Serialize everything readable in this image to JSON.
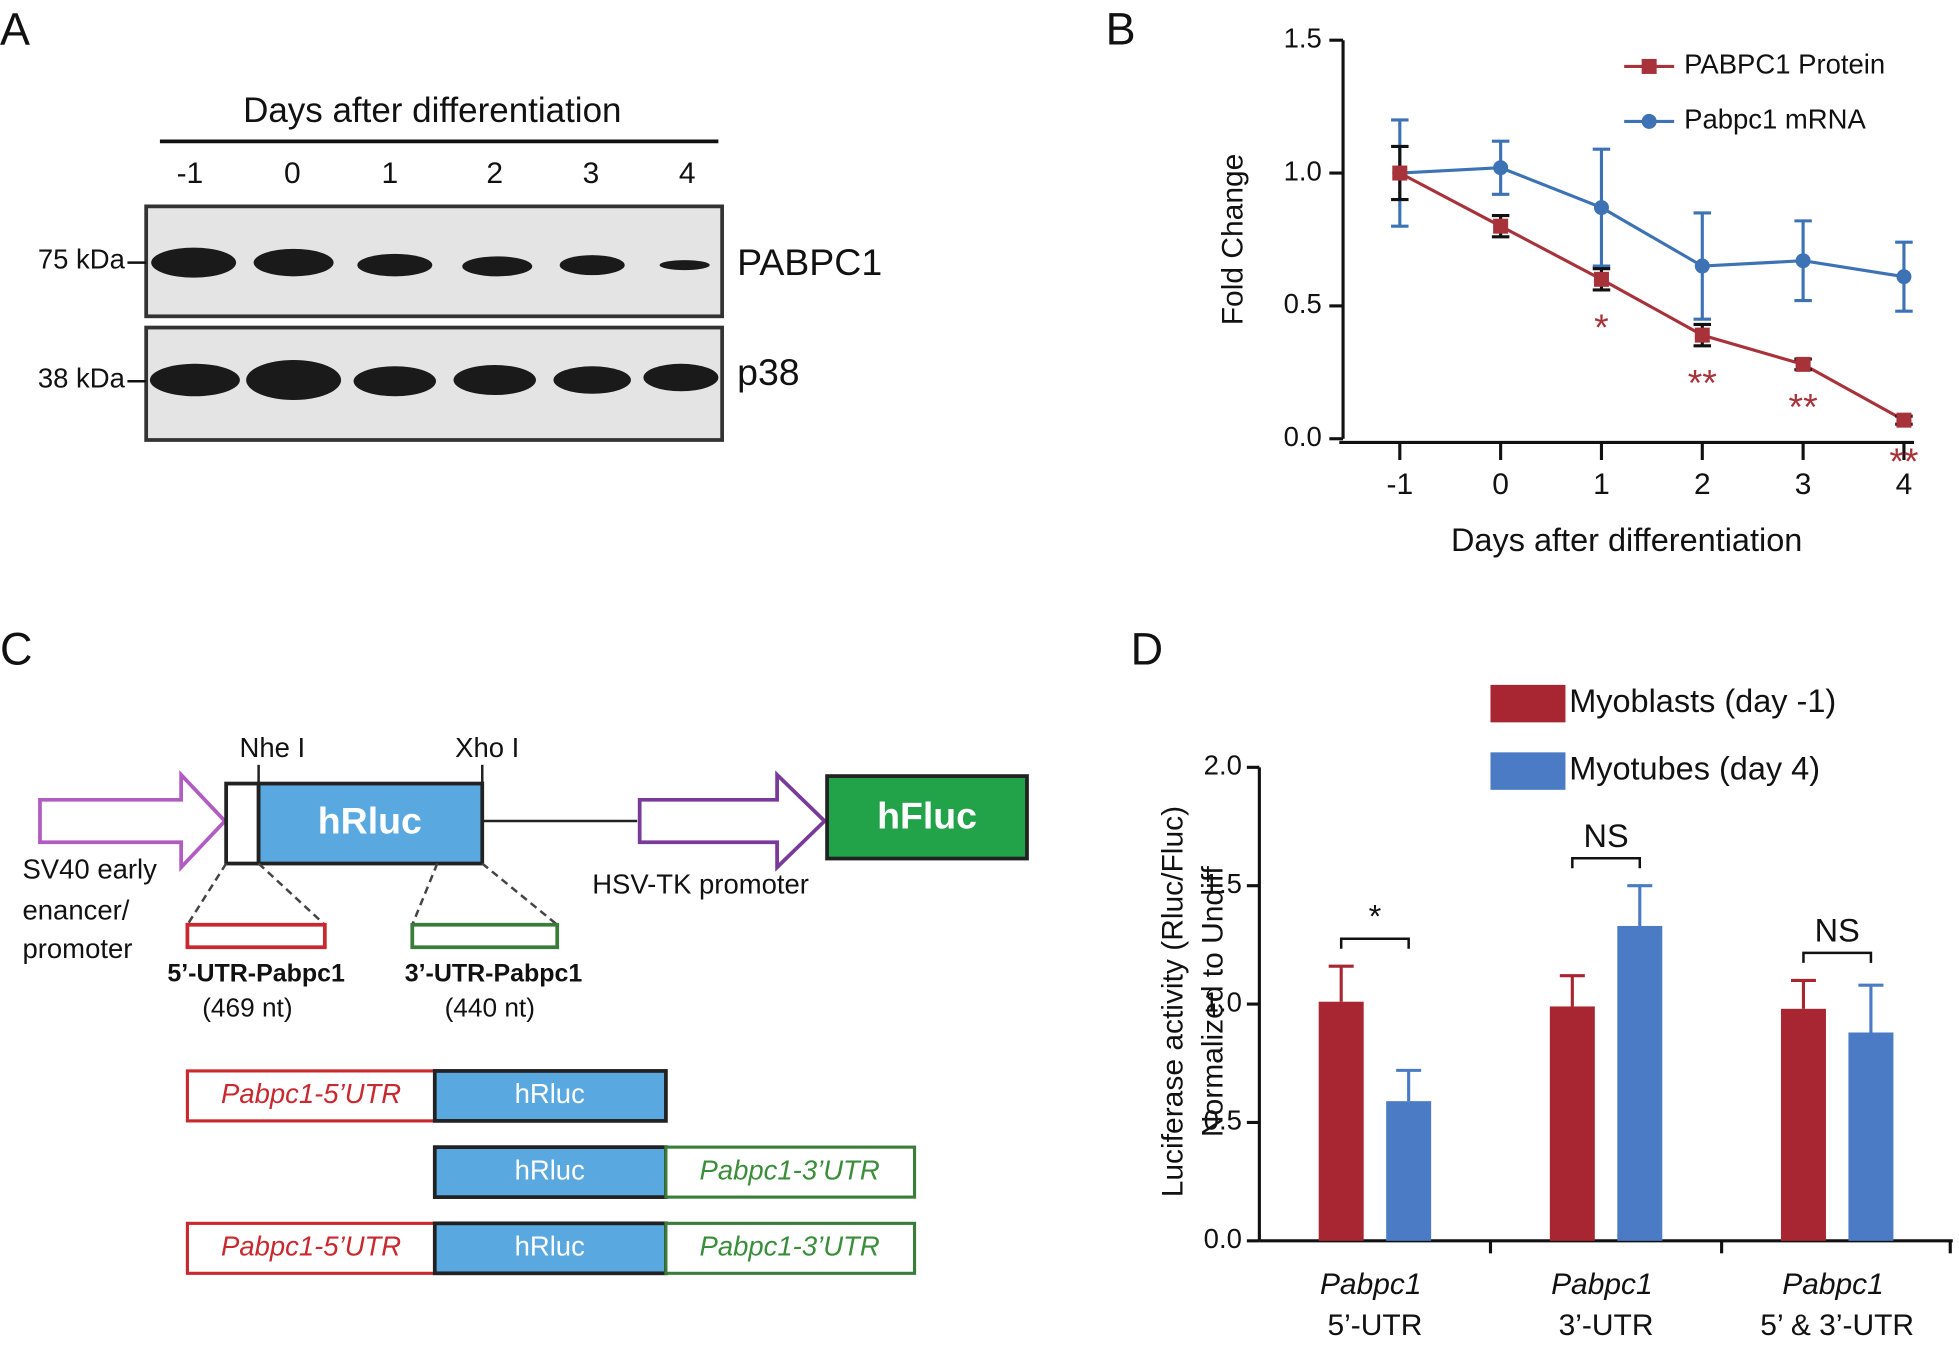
{
  "panel_labels": [
    "A",
    "B",
    "C",
    "D"
  ],
  "western_blot": {
    "title": "Days after differentiation",
    "lanes": [
      "-1",
      "0",
      "1",
      "2",
      "3",
      "4"
    ],
    "blots": [
      {
        "marker": "75 kDa",
        "protein": "PABPC1"
      },
      {
        "marker": "38 kDa",
        "protein": "p38"
      }
    ]
  },
  "construct_diagram": {
    "sites": [
      "Nhe I",
      "Xho I"
    ],
    "genes": [
      "hRluc",
      "hFluc"
    ],
    "promoter_1": [
      "SV40 early",
      "enancer/",
      "promoter"
    ],
    "promoter_2": "HSV-TK promoter",
    "utr_5": {
      "name": "5’-UTR-Pabpc1",
      "length": "(469 nt)"
    },
    "utr_3": {
      "name": "3’-UTR-Pabpc1",
      "length": "(440 nt)"
    },
    "constructs": [
      [
        "Pabpc1-5’UTR",
        "hRluc"
      ],
      [
        "hRluc",
        "Pabpc1-3’UTR"
      ],
      [
        "Pabpc1-5’UTR",
        "hRluc",
        "Pabpc1-3’UTR"
      ]
    ]
  },
  "chart_data": [
    {
      "type": "line",
      "x_label": "Days after differentiation",
      "y_label": "Fold Change",
      "x": [
        -1,
        0,
        1,
        2,
        3,
        4
      ],
      "xlim": [
        -1.6,
        4.1
      ],
      "xticks": [
        -1,
        0,
        1,
        2,
        3,
        4
      ],
      "ylim": [
        0,
        1.5
      ],
      "yticks": [
        {
          "value": 0,
          "label": "0.0"
        },
        0.5,
        {
          "value": 1,
          "label": "1.0"
        },
        1.5
      ],
      "legend": "upper right",
      "series": [
        {
          "name": "PABPC1 Protein",
          "color": "#a8323a",
          "marker": "square",
          "values": [
            1.0,
            0.8,
            0.6,
            0.39,
            0.28,
            0.07
          ],
          "errors": [
            0.1,
            0.04,
            0.04,
            0.04,
            0.02,
            0.015
          ]
        },
        {
          "name": "Pabpc1 mRNA",
          "color": "#3d72b4",
          "marker": "circle",
          "values": [
            1.0,
            1.02,
            0.87,
            0.65,
            0.67,
            0.61
          ],
          "errors": [
            0.2,
            0.1,
            0.22,
            0.2,
            0.15,
            0.13
          ]
        }
      ],
      "significance": [
        {
          "x": 1,
          "label": "*"
        },
        {
          "x": 2,
          "label": "**"
        },
        {
          "x": 3,
          "label": "**"
        },
        {
          "x": 4,
          "label": "**"
        }
      ]
    },
    {
      "type": "bar",
      "y_label": [
        "Luciferase activity (Rluc/Fluc)",
        "Normalized to Undiff"
      ],
      "categories": [
        "Pabpc1 5’-UTR",
        "Pabpc1 3’-UTR",
        "Pabpc1 5’ & 3’-UTR"
      ],
      "ylim": [
        0,
        2.0
      ],
      "yticks": [
        {
          "value": 0,
          "label": "0.0"
        },
        0.5,
        {
          "value": 1,
          "label": "1.0"
        },
        1.5,
        {
          "value": 2,
          "label": "2.0"
        }
      ],
      "legend": "upper center",
      "series": [
        {
          "name": "Myoblasts (day -1)",
          "color": "#a82532",
          "values": [
            1.01,
            0.99,
            0.98
          ],
          "errors": [
            0.15,
            0.13,
            0.12
          ]
        },
        {
          "name": "Myotubes (day 4)",
          "color": "#4a7bc4",
          "values": [
            0.59,
            1.33,
            0.88
          ],
          "errors": [
            0.13,
            0.17,
            0.2
          ]
        }
      ],
      "significance": [
        {
          "category": 0,
          "label": "*"
        },
        {
          "category": 1,
          "label": "NS"
        },
        {
          "category": 2,
          "label": "NS"
        }
      ]
    }
  ]
}
